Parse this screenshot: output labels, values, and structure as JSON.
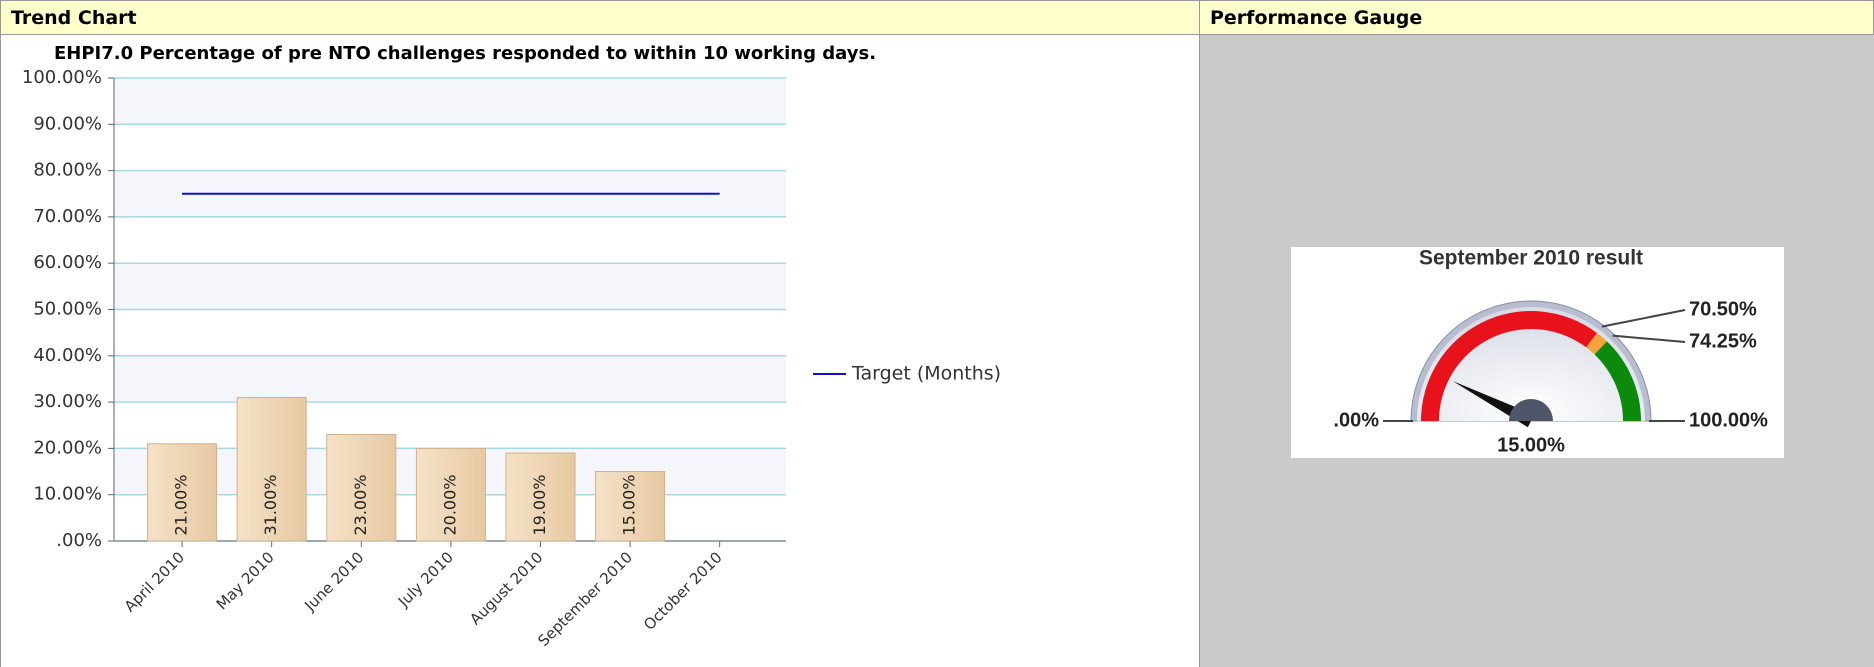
{
  "panels": [
    {
      "header": "Trend Chart"
    },
    {
      "header": "Performance Gauge"
    }
  ],
  "chart_data": [
    {
      "type": "bar",
      "title": "EHPI7.0 Percentage of pre NTO challenges responded to within 10 working days.",
      "categories": [
        "April 2010",
        "May 2010",
        "June 2010",
        "July 2010",
        "August 2010",
        "September 2010",
        "October 2010"
      ],
      "series": [
        {
          "type": "bar",
          "color": "#efd3b0",
          "values": [
            21,
            31,
            23,
            20,
            19,
            15,
            null
          ],
          "value_labels": [
            "21.00%",
            "31.00%",
            "23.00%",
            "20.00%",
            "19.00%",
            "15.00%",
            null
          ]
        },
        {
          "type": "line",
          "name": "Target (Months)",
          "color": "#1010cc",
          "values": [
            75,
            75,
            75,
            75,
            75,
            75,
            75
          ]
        }
      ],
      "ylim": [
        0,
        100
      ],
      "yticks": [
        {
          "value": 0,
          "label": ".00%"
        },
        {
          "value": 10,
          "label": "10.00%"
        },
        {
          "value": 20,
          "label": "20.00%"
        },
        {
          "value": 30,
          "label": "30.00%"
        },
        {
          "value": 40,
          "label": "40.00%"
        },
        {
          "value": 50,
          "label": "50.00%"
        },
        {
          "value": 60,
          "label": "60.00%"
        },
        {
          "value": 70,
          "label": "70.00%"
        },
        {
          "value": 80,
          "label": "80.00%"
        },
        {
          "value": 90,
          "label": "90.00%"
        },
        {
          "value": 100,
          "label": "100.00%"
        }
      ],
      "grid": true,
      "legend": "right"
    },
    {
      "type": "gauge",
      "title": "September 2010 result",
      "values": [
        15
      ],
      "value_labels": [
        "15.00%"
      ],
      "ticks": [
        {
          "value": 0,
          "label": ".00%"
        },
        {
          "value": 70.5,
          "label": "70.50%"
        },
        {
          "value": 74.25,
          "label": "74.25%"
        },
        {
          "value": 100,
          "label": "100.00%"
        }
      ],
      "band_colors": [
        "#e8121c",
        "#f4a43a",
        "#0c8a0c"
      ]
    }
  ]
}
